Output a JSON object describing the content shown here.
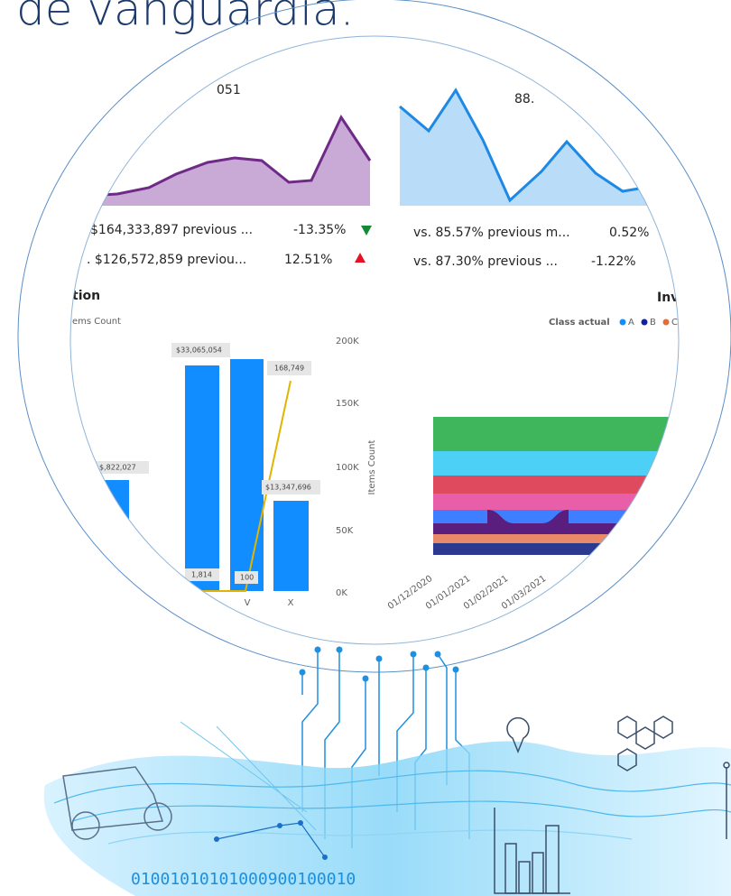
{
  "header": {
    "title": "de vanguardia."
  },
  "dashboard": {
    "kpi_left": {
      "value_fragment": "051",
      "rows": [
        {
          "text": "$164,333,897 previous ...",
          "change": "-13.35%"
        },
        {
          "text": ". $126,572,859 previou...",
          "change": "12.51%"
        }
      ]
    },
    "kpi_right": {
      "value_fragment": "88.",
      "rows": [
        {
          "text": "vs. 85.57% previous m...",
          "change": "0.52%"
        },
        {
          "text": "vs. 87.30% previous ...",
          "change": "-1.22%"
        }
      ]
    },
    "left_panel": {
      "title_fragment": "tion",
      "legend_fragment": "ems Count",
      "axis_title": "Items Count",
      "yticks": [
        "200K",
        "150K",
        "100K",
        "50K",
        "0K"
      ],
      "bar_labels": [
        "$,822,027",
        "$33,065,054",
        "168,749",
        "$13,347,696",
        "1,814",
        "100"
      ],
      "categories": [
        "V",
        "X"
      ]
    },
    "right_panel": {
      "title_fragment": "Inv",
      "legend_title": "Class actual",
      "legend_items": [
        "A",
        "B",
        "C"
      ],
      "dates": [
        "01/12/2020",
        "01/01/2021",
        "01/02/2021",
        "01/03/2021"
      ]
    }
  },
  "illustration": {
    "binary": "01001010101000900100010"
  }
}
